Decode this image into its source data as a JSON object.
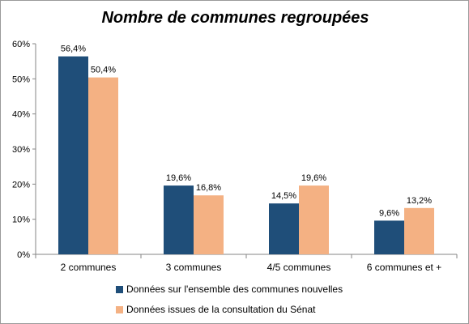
{
  "chart_data": {
    "type": "bar",
    "title": "Nombre de communes regroupées",
    "categories": [
      "2 communes",
      "3 communes",
      "4/5 communes",
      "6 communes et +"
    ],
    "series": [
      {
        "name": "Données sur l'ensemble des communes nouvelles",
        "color": "#1f4e79",
        "values": [
          56.4,
          19.6,
          14.5,
          9.6
        ],
        "labels": [
          "56,4%",
          "19,6%",
          "14,5%",
          "9,6%"
        ]
      },
      {
        "name": "Données issues de la consultation du Sénat",
        "color": "#f4b183",
        "values": [
          50.4,
          16.8,
          19.6,
          13.2
        ],
        "labels": [
          "50,4%",
          "16,8%",
          "19,6%",
          "13,2%"
        ]
      }
    ],
    "ylim": [
      0,
      60
    ],
    "yticks": [
      0,
      10,
      20,
      30,
      40,
      50,
      60
    ],
    "ytick_labels": [
      "0%",
      "10%",
      "20%",
      "30%",
      "40%",
      "50%",
      "60%"
    ],
    "grid": false,
    "legend_position": "bottom"
  }
}
